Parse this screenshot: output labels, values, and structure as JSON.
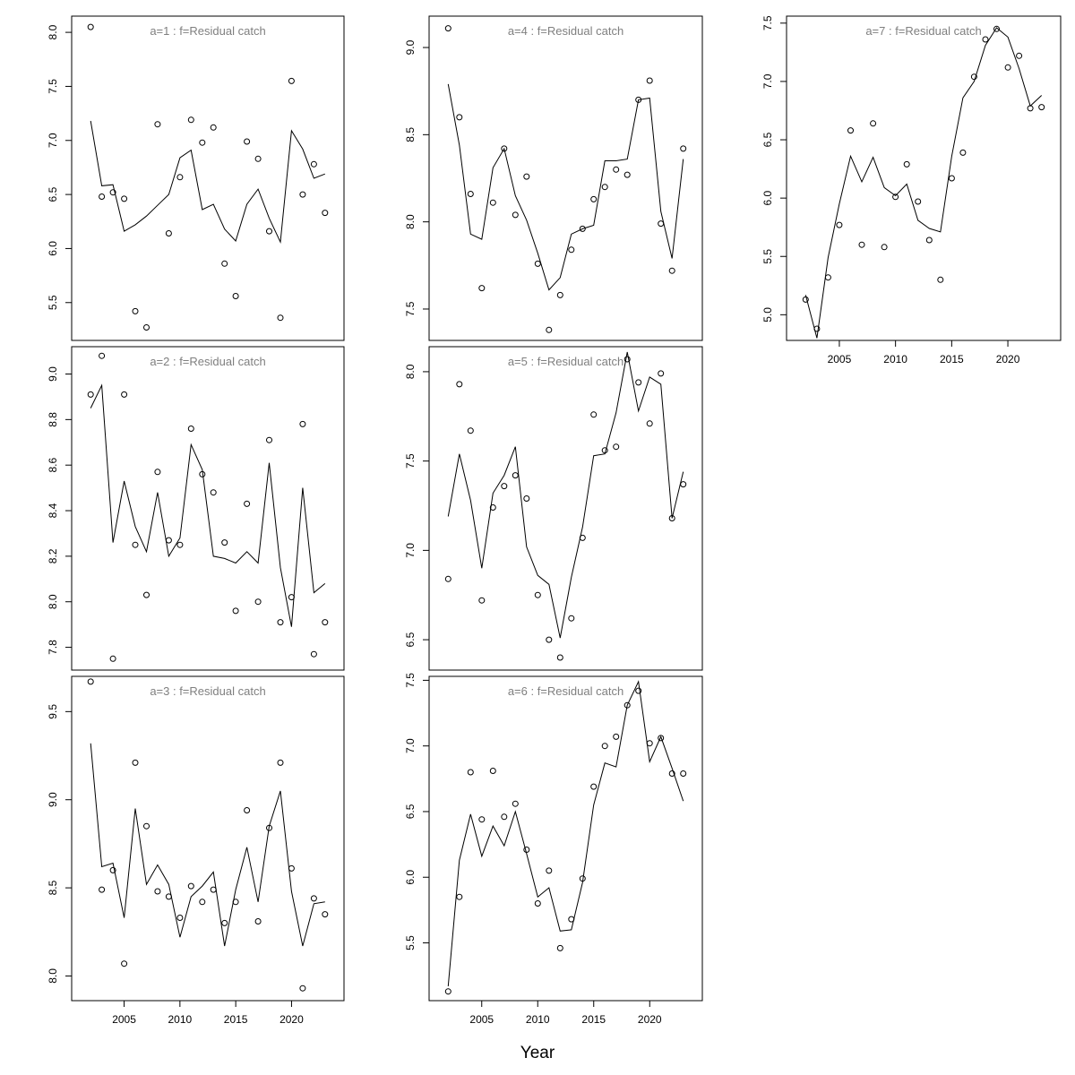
{
  "figure": {
    "xlabel": "Year"
  },
  "chart_data": [
    {
      "type": "scatter",
      "title": "a=1  :  f=Residual catch",
      "x": [
        2002,
        2003,
        2004,
        2005,
        2006,
        2007,
        2008,
        2009,
        2010,
        2011,
        2012,
        2013,
        2014,
        2015,
        2016,
        2017,
        2018,
        2019,
        2020,
        2021,
        2022,
        2023
      ],
      "series": [
        {
          "style": "points",
          "values": [
            8.05,
            6.48,
            6.52,
            6.46,
            5.42,
            5.27,
            7.15,
            6.14,
            6.66,
            7.19,
            6.98,
            7.12,
            5.86,
            5.56,
            6.99,
            6.83,
            6.16,
            5.36,
            7.55,
            6.5,
            6.78,
            6.33
          ]
        },
        {
          "style": "line",
          "values": [
            7.18,
            6.58,
            6.59,
            6.16,
            6.22,
            6.3,
            6.4,
            6.5,
            6.84,
            6.91,
            6.36,
            6.41,
            6.18,
            6.07,
            6.41,
            6.55,
            6.28,
            6.06,
            7.09,
            6.92,
            6.65,
            6.69
          ]
        }
      ],
      "xlim": [
        2000.3,
        2024.7
      ],
      "ylim": [
        5.15,
        8.15
      ],
      "yticks": [
        "5.5",
        "6.0",
        "6.5",
        "7.0",
        "7.5",
        "8.0"
      ],
      "xticks": []
    },
    {
      "type": "scatter",
      "title": "a=2  :  f=Residual catch",
      "x": [
        2002,
        2003,
        2004,
        2005,
        2006,
        2007,
        2008,
        2009,
        2010,
        2011,
        2012,
        2013,
        2014,
        2015,
        2016,
        2017,
        2018,
        2019,
        2020,
        2021,
        2022,
        2023
      ],
      "series": [
        {
          "style": "points",
          "values": [
            8.91,
            9.08,
            7.75,
            8.91,
            8.25,
            8.03,
            8.57,
            8.27,
            8.25,
            8.76,
            8.56,
            8.48,
            8.26,
            7.96,
            8.43,
            8.0,
            8.71,
            7.91,
            8.02,
            8.78,
            7.77,
            7.91
          ]
        },
        {
          "style": "line",
          "values": [
            8.85,
            8.95,
            8.26,
            8.53,
            8.33,
            8.22,
            8.48,
            8.2,
            8.28,
            8.69,
            8.58,
            8.2,
            8.19,
            8.17,
            8.22,
            8.17,
            8.61,
            8.15,
            7.89,
            8.5,
            8.04,
            8.08
          ]
        }
      ],
      "xlim": [
        2000.3,
        2024.7
      ],
      "ylim": [
        7.7,
        9.12
      ],
      "yticks": [
        "7.8",
        "8.0",
        "8.2",
        "8.4",
        "8.6",
        "8.8",
        "9.0"
      ],
      "xticks": []
    },
    {
      "type": "scatter",
      "title": "a=3  :  f=Residual catch",
      "x": [
        2002,
        2003,
        2004,
        2005,
        2006,
        2007,
        2008,
        2009,
        2010,
        2011,
        2012,
        2013,
        2014,
        2015,
        2016,
        2017,
        2018,
        2019,
        2020,
        2021,
        2022,
        2023
      ],
      "series": [
        {
          "style": "points",
          "values": [
            9.67,
            8.49,
            8.6,
            8.07,
            9.21,
            8.85,
            8.48,
            8.45,
            8.33,
            8.51,
            8.42,
            8.49,
            8.3,
            8.42,
            8.94,
            8.31,
            8.84,
            9.21,
            8.61,
            7.93,
            8.44,
            8.35
          ]
        },
        {
          "style": "line",
          "values": [
            9.32,
            8.62,
            8.64,
            8.33,
            8.95,
            8.52,
            8.63,
            8.52,
            8.22,
            8.45,
            8.51,
            8.59,
            8.17,
            8.49,
            8.73,
            8.42,
            8.85,
            9.05,
            8.48,
            8.17,
            8.41,
            8.42
          ]
        }
      ],
      "xlim": [
        2000.3,
        2024.7
      ],
      "ylim": [
        7.86,
        9.7
      ],
      "yticks": [
        "8.0",
        "8.5",
        "9.0",
        "9.5"
      ],
      "xticks": [
        "2005",
        "2010",
        "2015",
        "2020"
      ]
    },
    {
      "type": "scatter",
      "title": "a=4  :  f=Residual catch",
      "x": [
        2002,
        2003,
        2004,
        2005,
        2006,
        2007,
        2008,
        2009,
        2010,
        2011,
        2012,
        2013,
        2014,
        2015,
        2016,
        2017,
        2018,
        2019,
        2020,
        2021,
        2022,
        2023
      ],
      "series": [
        {
          "style": "points",
          "values": [
            9.11,
            8.6,
            8.16,
            7.62,
            8.11,
            8.42,
            8.04,
            8.26,
            7.76,
            7.38,
            7.58,
            7.84,
            7.96,
            8.13,
            8.2,
            8.3,
            8.27,
            8.7,
            8.81,
            7.99,
            7.72,
            8.42
          ]
        },
        {
          "style": "line",
          "values": [
            8.79,
            8.44,
            7.93,
            7.9,
            8.31,
            8.42,
            8.15,
            8.01,
            7.82,
            7.61,
            7.68,
            7.93,
            7.96,
            7.98,
            8.35,
            8.35,
            8.36,
            8.7,
            8.71,
            8.06,
            7.79,
            8.36
          ]
        }
      ],
      "xlim": [
        2000.3,
        2024.7
      ],
      "ylim": [
        7.32,
        9.18
      ],
      "yticks": [
        "7.5",
        "8.0",
        "8.5",
        "9.0"
      ],
      "xticks": []
    },
    {
      "type": "scatter",
      "title": "a=5  :  f=Residual catch",
      "x": [
        2002,
        2003,
        2004,
        2005,
        2006,
        2007,
        2008,
        2009,
        2010,
        2011,
        2012,
        2013,
        2014,
        2015,
        2016,
        2017,
        2018,
        2019,
        2020,
        2021,
        2022,
        2023
      ],
      "series": [
        {
          "style": "points",
          "values": [
            6.84,
            7.93,
            7.67,
            6.72,
            7.24,
            7.36,
            7.42,
            7.29,
            6.75,
            6.5,
            6.4,
            6.62,
            7.07,
            7.76,
            7.56,
            7.58,
            8.07,
            7.94,
            7.71,
            7.99,
            7.18,
            7.37
          ]
        },
        {
          "style": "line",
          "values": [
            7.19,
            7.54,
            7.28,
            6.9,
            7.32,
            7.42,
            7.58,
            7.02,
            6.86,
            6.81,
            6.51,
            6.85,
            7.13,
            7.53,
            7.54,
            7.77,
            8.11,
            7.78,
            7.97,
            7.93,
            7.18,
            7.44
          ]
        }
      ],
      "xlim": [
        2000.3,
        2024.7
      ],
      "ylim": [
        6.33,
        8.14
      ],
      "yticks": [
        "6.5",
        "7.0",
        "7.5",
        "8.0"
      ],
      "xticks": []
    },
    {
      "type": "scatter",
      "title": "a=6  :  f=Residual catch",
      "x": [
        2002,
        2003,
        2004,
        2005,
        2006,
        2007,
        2008,
        2009,
        2010,
        2011,
        2012,
        2013,
        2014,
        2015,
        2016,
        2017,
        2018,
        2019,
        2020,
        2021,
        2022,
        2023
      ],
      "series": [
        {
          "style": "points",
          "values": [
            5.13,
            5.85,
            6.8,
            6.44,
            6.81,
            6.46,
            6.56,
            6.21,
            5.8,
            6.05,
            5.46,
            5.68,
            5.99,
            6.69,
            7.0,
            7.07,
            7.31,
            7.42,
            7.02,
            7.06,
            6.79,
            6.79
          ]
        },
        {
          "style": "line",
          "values": [
            5.17,
            6.13,
            6.48,
            6.16,
            6.39,
            6.24,
            6.5,
            6.18,
            5.85,
            5.92,
            5.59,
            5.6,
            5.96,
            6.55,
            6.87,
            6.84,
            7.31,
            7.49,
            6.88,
            7.07,
            6.83,
            6.58
          ]
        }
      ],
      "xlim": [
        2000.3,
        2024.7
      ],
      "ylim": [
        5.06,
        7.53
      ],
      "yticks": [
        "5.5",
        "6.0",
        "6.5",
        "7.0",
        "7.5"
      ],
      "xticks": [
        "2005",
        "2010",
        "2015",
        "2020"
      ]
    },
    {
      "type": "scatter",
      "title": "a=7  :  f=Residual catch",
      "x": [
        2002,
        2003,
        2004,
        2005,
        2006,
        2007,
        2008,
        2009,
        2010,
        2011,
        2012,
        2013,
        2014,
        2015,
        2016,
        2017,
        2018,
        2019,
        2020,
        2021,
        2022,
        2023
      ],
      "series": [
        {
          "style": "points",
          "values": [
            5.13,
            4.88,
            5.32,
            5.77,
            6.58,
            5.6,
            6.64,
            5.58,
            6.01,
            6.29,
            5.97,
            5.64,
            5.3,
            6.17,
            6.39,
            7.04,
            7.36,
            7.45,
            7.12,
            7.22,
            6.77,
            6.78
          ]
        },
        {
          "style": "line",
          "values": [
            5.17,
            4.8,
            5.49,
            5.95,
            6.36,
            6.14,
            6.35,
            6.09,
            6.02,
            6.12,
            5.81,
            5.74,
            5.71,
            6.36,
            6.86,
            7.0,
            7.31,
            7.46,
            7.38,
            7.11,
            6.79,
            6.88
          ]
        }
      ],
      "xlim": [
        2000.3,
        2024.7
      ],
      "ylim": [
        4.78,
        7.56
      ],
      "yticks": [
        "5.0",
        "5.5",
        "6.0",
        "6.5",
        "7.0",
        "7.5"
      ],
      "xticks": [
        "2005",
        "2010",
        "2015",
        "2020"
      ]
    }
  ]
}
